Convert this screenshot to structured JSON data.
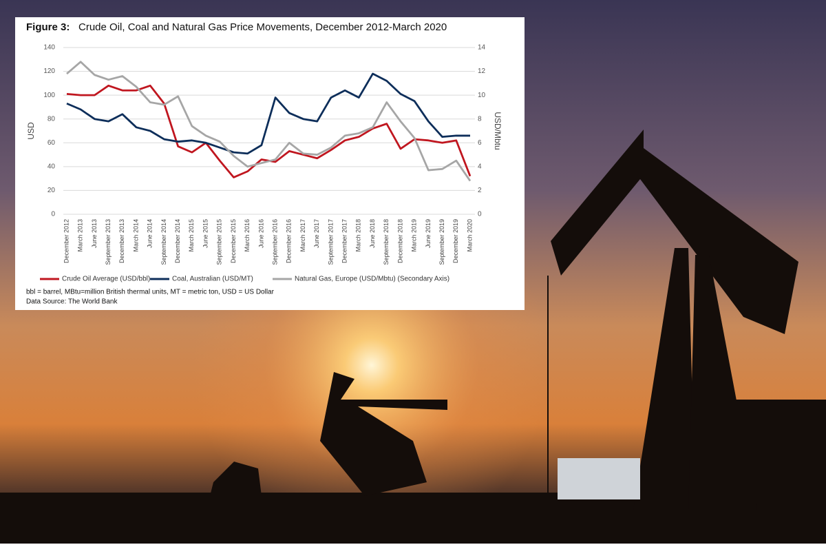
{
  "chart_data": {
    "type": "line",
    "title_label": "Figure 3:",
    "title": "Crude Oil, Coal and Natural Gas Price Movements, December 2012-March 2020",
    "categories": [
      "December 2012",
      "March 2013",
      "June 2013",
      "September 2013",
      "December 2013",
      "March 2014",
      "June 2014",
      "September 2014",
      "December 2014",
      "March 2015",
      "June 2015",
      "September 2015",
      "December 2015",
      "March 2016",
      "June 2016",
      "September 2016",
      "December 2016",
      "March 2017",
      "June 2017",
      "September 2017",
      "December 2017",
      "March 2018",
      "June 2018",
      "September 2018",
      "December 2018",
      "March 2019",
      "June 2019",
      "September 2019",
      "December 2019",
      "March 2020"
    ],
    "series": [
      {
        "name": "Crude Oil Average (USD/bbl)",
        "color": "#c0161f",
        "values": [
          101,
          100,
          100,
          108,
          104,
          104,
          108,
          93,
          57,
          52,
          60,
          45,
          31,
          36,
          46,
          44,
          53,
          50,
          47,
          54,
          62,
          65,
          72,
          76,
          55,
          63,
          62,
          60,
          62,
          32
        ]
      },
      {
        "name": "Coal, Australian (USD/MT)",
        "color": "#0d2e5a",
        "values": [
          93,
          88,
          80,
          78,
          84,
          73,
          70,
          63,
          61,
          62,
          60,
          56,
          52,
          51,
          58,
          98,
          85,
          80,
          78,
          98,
          104,
          98,
          118,
          112,
          101,
          95,
          78,
          65,
          66,
          66
        ]
      },
      {
        "name": "Natural Gas, Europe (USD/Mbtu) (Secondary Axis)",
        "color": "#a6a6a6",
        "axis": "y2",
        "values": [
          11.8,
          12.8,
          11.7,
          11.3,
          11.6,
          10.7,
          9.4,
          9.2,
          9.9,
          7.4,
          6.6,
          6.1,
          4.9,
          4.0,
          4.3,
          4.6,
          6.0,
          5.1,
          5.0,
          5.6,
          6.6,
          6.8,
          7.3,
          9.4,
          7.8,
          6.4,
          3.7,
          3.8,
          4.5,
          2.8
        ]
      }
    ],
    "ylabel": "USD",
    "y2label": "USD/Mbtu",
    "ylim": [
      0,
      140
    ],
    "yticks": [
      0,
      20,
      40,
      60,
      80,
      100,
      120,
      140
    ],
    "y2lim": [
      0,
      14
    ],
    "y2ticks": [
      0,
      2,
      4,
      6,
      8,
      10,
      12,
      14
    ],
    "grid": true,
    "notes": [
      "bbl = barrel, MBtu=million British thermal units, MT = metric ton, USD = US Dollar",
      "Data Source: The World Bank"
    ]
  }
}
